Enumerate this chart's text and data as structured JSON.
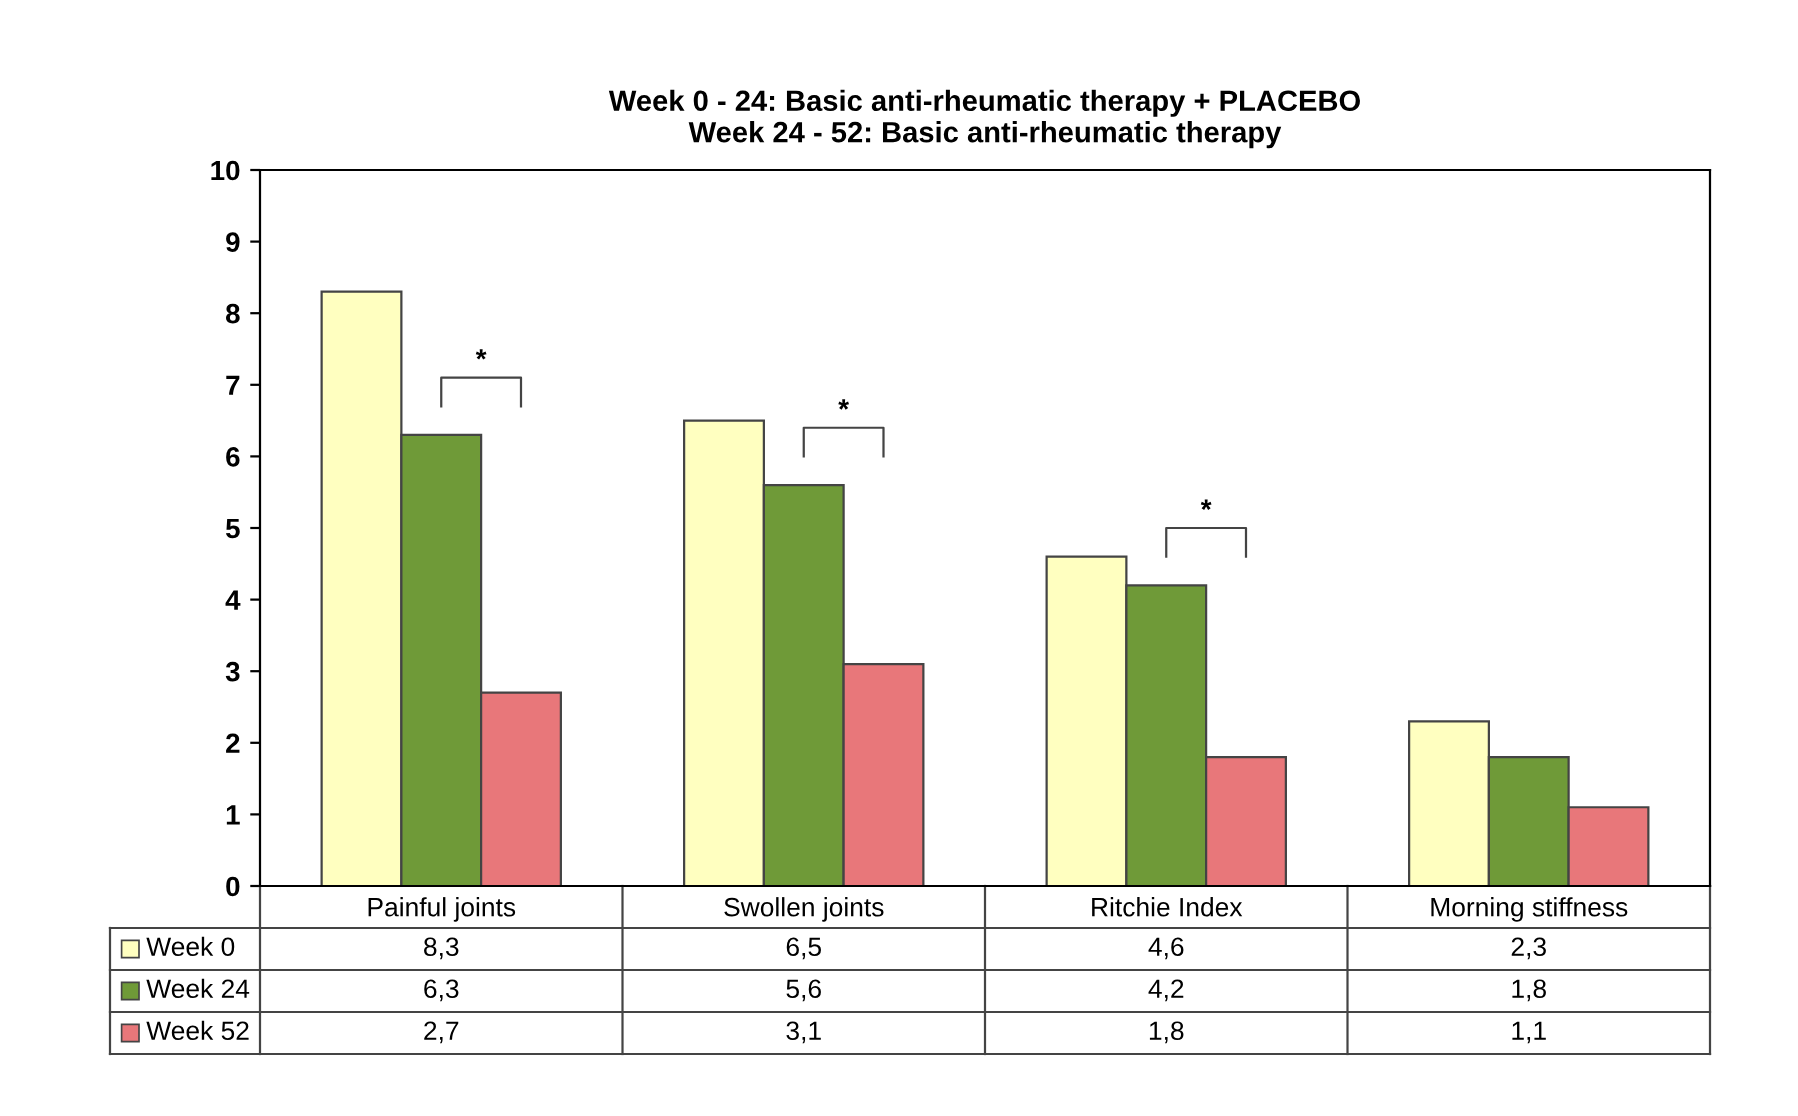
{
  "chart_data": {
    "type": "bar",
    "title": "Week 0 - 24: Basic anti-rheumatic therapy + PLACEBO\nWeek 24 - 52: Basic anti-rheumatic therapy",
    "categories": [
      "Painful joints",
      "Swollen joints",
      "Ritchie Index",
      "Morning stiffness"
    ],
    "series": [
      {
        "name": "Week 0",
        "color": "#ffffc0",
        "values": [
          8.3,
          6.5,
          4.6,
          2.3
        ],
        "value_labels": [
          "8,3",
          "6,5",
          "4,6",
          "2,3"
        ]
      },
      {
        "name": "Week 24",
        "color": "#6f9a38",
        "values": [
          6.3,
          5.6,
          4.2,
          1.8
        ],
        "value_labels": [
          "6,3",
          "5,6",
          "4,2",
          "1,8"
        ]
      },
      {
        "name": "Week 52",
        "color": "#e8777a",
        "values": [
          2.7,
          3.1,
          1.8,
          1.1
        ],
        "value_labels": [
          "2,7",
          "3,1",
          "1,8",
          "1,1"
        ]
      }
    ],
    "ylim": [
      0,
      10
    ],
    "yticks": [
      0,
      1,
      2,
      3,
      4,
      5,
      6,
      7,
      8,
      9,
      10
    ],
    "grid": false,
    "legend": "bottom",
    "annotations": [
      "*",
      "*",
      "*"
    ]
  }
}
